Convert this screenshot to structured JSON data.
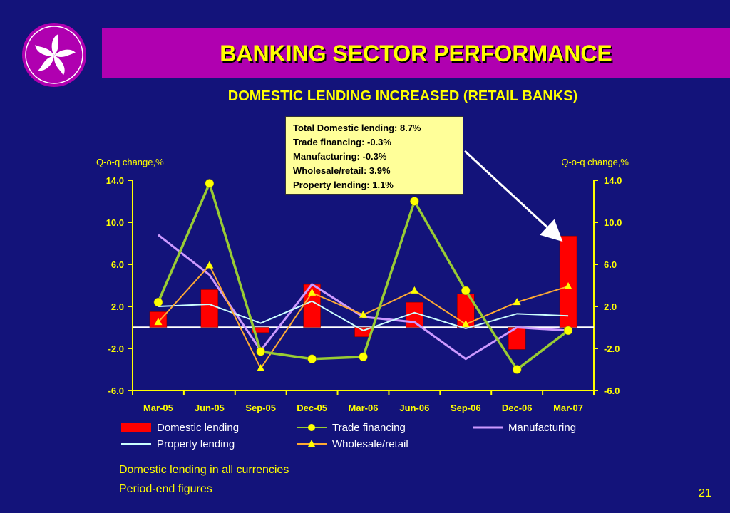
{
  "header": {
    "title": "BANKING SECTOR PERFORMANCE",
    "subtitle": "DOMESTIC LENDING INCREASED (RETAIL BANKS)"
  },
  "annotation": {
    "lines": [
      "Total Domestic lending: 8.7%",
      "Trade financing: -0.3%",
      "Manufacturing: -0.3%",
      "Wholesale/retail: 3.9%",
      "Property lending: 1.1%"
    ]
  },
  "notes": [
    "Domestic lending in all currencies",
    "Period-end figures"
  ],
  "page_number": "21",
  "colors": {
    "background": "#13137a",
    "title_bar": "#b000b0",
    "text": "#ffff00",
    "domestic": "#ff0000",
    "trade": "#99cc33",
    "manufacturing": "#cc99ff",
    "property": "#ccffff",
    "wholesale": "#ffaa33",
    "axis": "#ffff00"
  },
  "chart_data": {
    "type": "bar",
    "categories": [
      "Mar-05",
      "Jun-05",
      "Sep-05",
      "Dec-05",
      "Mar-06",
      "Jun-06",
      "Sep-06",
      "Dec-06",
      "Mar-07"
    ],
    "ylabel_left": "Q-o-q change,%",
    "ylabel_right": "Q-o-q change,%",
    "ylim": [
      -6,
      14
    ],
    "yticks": [
      14.0,
      10.0,
      6.0,
      2.0,
      -2.0,
      -6.0
    ],
    "ytick_labels": [
      "14.0",
      "10.0",
      "6.0",
      "2.0",
      "-2.0",
      "-6.0"
    ],
    "series": [
      {
        "name": "Domestic lending",
        "type": "bar",
        "marker": "none",
        "values": [
          1.5,
          3.6,
          -0.5,
          4.1,
          -0.9,
          2.4,
          3.2,
          -2.1,
          8.7
        ]
      },
      {
        "name": "Trade financing",
        "type": "line",
        "marker": "circle",
        "values": [
          2.4,
          13.7,
          -2.3,
          -3.0,
          -2.8,
          12.0,
          3.5,
          -4.0,
          -0.3
        ]
      },
      {
        "name": "Manufacturing",
        "type": "line",
        "marker": "none",
        "values": [
          8.8,
          5.0,
          -2.2,
          4.1,
          1.0,
          0.5,
          -3.0,
          0.0,
          -0.3
        ]
      },
      {
        "name": "Property lending",
        "type": "line",
        "marker": "none",
        "values": [
          2.0,
          2.2,
          0.4,
          2.5,
          -0.3,
          1.4,
          -0.1,
          1.3,
          1.1
        ]
      },
      {
        "name": "Wholesale/retail",
        "type": "line",
        "marker": "triangle",
        "values": [
          0.5,
          5.9,
          -3.9,
          3.3,
          1.2,
          3.5,
          0.3,
          2.4,
          3.9
        ]
      }
    ],
    "legend": "bottom",
    "grid": false
  }
}
